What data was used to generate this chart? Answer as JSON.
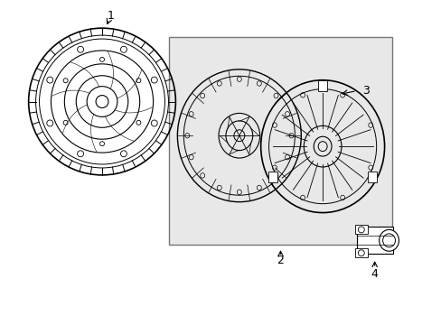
{
  "title": "",
  "background_color": "#ffffff",
  "line_color": "#000000",
  "part_labels": [
    "1",
    "2",
    "3",
    "4"
  ],
  "fig_width": 4.89,
  "fig_height": 3.6,
  "dpi": 100,
  "box_color": "#e8e8e8",
  "box_linecolor": "#555555"
}
